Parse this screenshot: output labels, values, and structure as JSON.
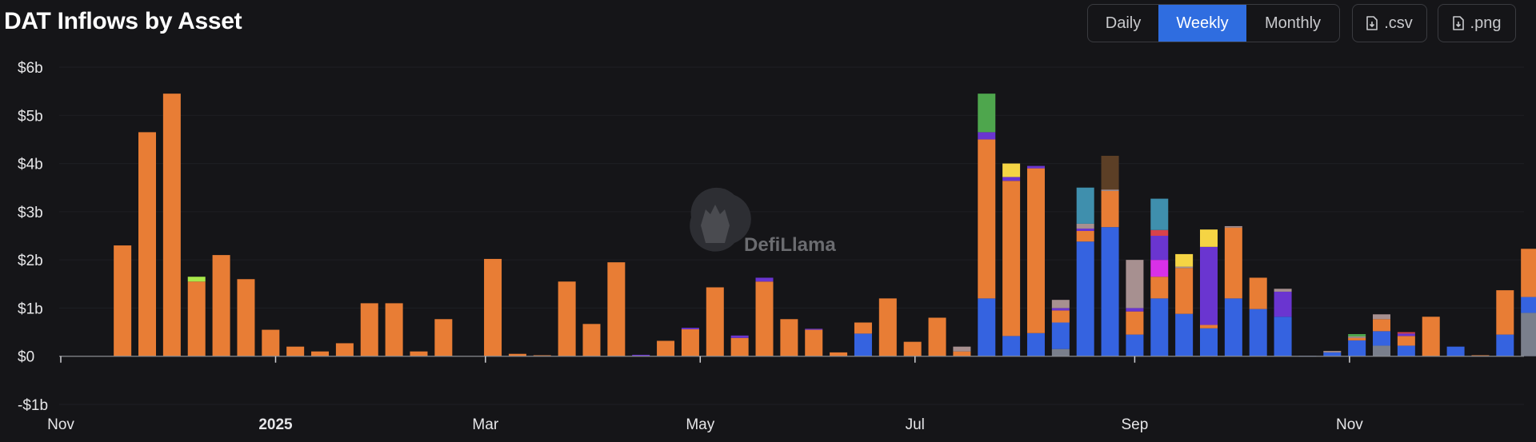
{
  "header": {
    "title": "DAT Inflows by Asset",
    "tabs": [
      {
        "label": "Daily",
        "active": false
      },
      {
        "label": "Weekly",
        "active": true
      },
      {
        "label": "Monthly",
        "active": false
      }
    ],
    "csv_label": ".csv",
    "png_label": ".png",
    "active_color": "#2f6de0"
  },
  "watermark": {
    "text": "DefiLlama"
  },
  "chart_data": {
    "type": "bar",
    "stacked": true,
    "title": "DAT Inflows by Asset",
    "ylim": [
      -1,
      6
    ],
    "y_ticks": [
      {
        "value": 6,
        "label": "$6b"
      },
      {
        "value": 5,
        "label": "$5b"
      },
      {
        "value": 4,
        "label": "$4b"
      },
      {
        "value": 3,
        "label": "$3b"
      },
      {
        "value": 2,
        "label": "$2b"
      },
      {
        "value": 1,
        "label": "$1b"
      },
      {
        "value": 0,
        "label": "$0"
      },
      {
        "value": -1,
        "label": "-$1b"
      }
    ],
    "x_ticks": [
      {
        "week": 0,
        "label": "Nov",
        "bold": false
      },
      {
        "week": 8.7,
        "label": "2025",
        "bold": true
      },
      {
        "week": 17.2,
        "label": "Mar",
        "bold": false
      },
      {
        "week": 25.9,
        "label": "May",
        "bold": false
      },
      {
        "week": 34.6,
        "label": "Jul",
        "bold": false
      },
      {
        "week": 43.5,
        "label": "Sep",
        "bold": false
      },
      {
        "week": 52.2,
        "label": "Nov",
        "bold": false
      }
    ],
    "grid": true,
    "legend": "none",
    "colors": {
      "orange": "#e87d35",
      "blue": "#3563e0",
      "purple": "#6a35d0",
      "green": "#4ea64d",
      "yellow": "#f5d444",
      "teal": "#3f8fad",
      "brown": "#5c3f26",
      "pink": "#a79090",
      "gray": "#7a7f8c",
      "magenta": "#d830e8",
      "red": "#d9424b",
      "lime": "#a8e84a"
    },
    "weeks": [
      [],
      [],
      [
        [
          "orange",
          2.3
        ]
      ],
      [
        [
          "orange",
          4.65
        ]
      ],
      [
        [
          "orange",
          5.45
        ]
      ],
      [
        [
          "orange",
          1.55
        ],
        [
          "lime",
          0.1
        ]
      ],
      [
        [
          "orange",
          2.1
        ]
      ],
      [
        [
          "orange",
          1.6
        ]
      ],
      [
        [
          "orange",
          0.55
        ]
      ],
      [
        [
          "orange",
          0.2
        ]
      ],
      [
        [
          "orange",
          0.1
        ]
      ],
      [
        [
          "orange",
          0.27
        ]
      ],
      [
        [
          "orange",
          1.1
        ]
      ],
      [
        [
          "orange",
          1.1
        ]
      ],
      [
        [
          "orange",
          0.1
        ]
      ],
      [
        [
          "orange",
          0.77
        ]
      ],
      [],
      [
        [
          "orange",
          2.02
        ]
      ],
      [
        [
          "orange",
          0.05
        ]
      ],
      [
        [
          "orange",
          0.02
        ]
      ],
      [
        [
          "orange",
          1.55
        ]
      ],
      [
        [
          "orange",
          0.67
        ]
      ],
      [
        [
          "orange",
          1.95
        ]
      ],
      [
        [
          "purple",
          0.03
        ]
      ],
      [
        [
          "orange",
          0.32
        ]
      ],
      [
        [
          "orange",
          0.56
        ],
        [
          "purple",
          0.03
        ]
      ],
      [
        [
          "orange",
          1.43
        ]
      ],
      [
        [
          "orange",
          0.38
        ],
        [
          "purple",
          0.05
        ]
      ],
      [
        [
          "orange",
          1.55
        ],
        [
          "purple",
          0.08
        ]
      ],
      [
        [
          "orange",
          0.77
        ]
      ],
      [
        [
          "orange",
          0.55
        ],
        [
          "purple",
          0.02
        ]
      ],
      [
        [
          "orange",
          0.08
        ]
      ],
      [
        [
          "blue",
          0.47
        ],
        [
          "orange",
          0.23
        ]
      ],
      [
        [
          "orange",
          1.2
        ]
      ],
      [
        [
          "orange",
          0.3
        ]
      ],
      [
        [
          "orange",
          0.8
        ]
      ],
      [
        [
          "orange",
          0.1
        ],
        [
          "pink",
          0.1
        ]
      ],
      [
        [
          "blue",
          1.2
        ],
        [
          "orange",
          3.3
        ],
        [
          "purple",
          0.15
        ],
        [
          "green",
          0.8
        ]
      ],
      [
        [
          "blue",
          0.42
        ],
        [
          "orange",
          3.22
        ],
        [
          "purple",
          0.08
        ],
        [
          "yellow",
          0.28
        ]
      ],
      [
        [
          "blue",
          0.48
        ],
        [
          "orange",
          3.42
        ],
        [
          "purple",
          0.05
        ]
      ],
      [
        [
          "gray",
          0.15
        ],
        [
          "blue",
          0.55
        ],
        [
          "orange",
          0.25
        ],
        [
          "purple",
          0.05
        ],
        [
          "pink",
          0.17
        ]
      ],
      [
        [
          "blue",
          2.38
        ],
        [
          "orange",
          0.22
        ],
        [
          "purple",
          0.05
        ],
        [
          "pink",
          0.1
        ],
        [
          "teal",
          0.75
        ]
      ],
      [
        [
          "blue",
          2.68
        ],
        [
          "orange",
          0.75
        ],
        [
          "pink",
          0.03
        ],
        [
          "brown",
          0.7
        ]
      ],
      [
        [
          "blue",
          0.45
        ],
        [
          "orange",
          0.48
        ],
        [
          "purple",
          0.07
        ],
        [
          "pink",
          1.0
        ]
      ],
      [
        [
          "blue",
          1.2
        ],
        [
          "orange",
          0.45
        ],
        [
          "magenta",
          0.35
        ],
        [
          "purple",
          0.5
        ],
        [
          "red",
          0.12
        ],
        [
          "teal",
          0.65
        ]
      ],
      [
        [
          "blue",
          0.88
        ],
        [
          "orange",
          0.95
        ],
        [
          "pink",
          0.03
        ],
        [
          "yellow",
          0.26
        ]
      ],
      [
        [
          "blue",
          0.58
        ],
        [
          "orange",
          0.07
        ],
        [
          "purple",
          1.62
        ],
        [
          "yellow",
          0.36
        ]
      ],
      [
        [
          "blue",
          1.2
        ],
        [
          "orange",
          1.47
        ],
        [
          "pink",
          0.03
        ]
      ],
      [
        [
          "blue",
          0.98
        ],
        [
          "orange",
          0.65
        ]
      ],
      [
        [
          "blue",
          0.82
        ],
        [
          "purple",
          0.52
        ],
        [
          "pink",
          0.06
        ]
      ],
      [
        [
          "blue",
          0.01
        ]
      ],
      [
        [
          "blue",
          0.08
        ],
        [
          "pink",
          0.03
        ]
      ],
      [
        [
          "blue",
          0.33
        ],
        [
          "orange",
          0.05
        ],
        [
          "pink",
          0.03
        ],
        [
          "green",
          0.05
        ]
      ],
      [
        [
          "gray",
          0.22
        ],
        [
          "blue",
          0.3
        ],
        [
          "orange",
          0.25
        ],
        [
          "pink",
          0.1
        ]
      ],
      [
        [
          "blue",
          0.22
        ],
        [
          "orange",
          0.2
        ],
        [
          "purple",
          0.05
        ],
        [
          "red",
          0.03
        ]
      ],
      [
        [
          "orange",
          0.82
        ]
      ],
      [
        [
          "blue",
          0.2
        ]
      ],
      [
        [
          "orange",
          0.02
        ]
      ],
      [
        [
          "blue",
          0.45
        ],
        [
          "orange",
          0.92
        ]
      ],
      [
        [
          "gray",
          0.9
        ],
        [
          "blue",
          0.33
        ],
        [
          "orange",
          1.0
        ]
      ]
    ]
  }
}
